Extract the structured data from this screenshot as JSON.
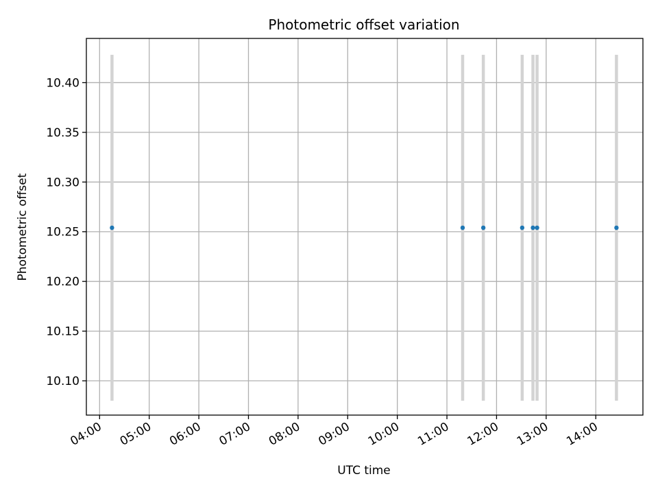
{
  "chart_data": {
    "type": "scatter",
    "title": "Photometric offset variation",
    "xlabel": "UTC time",
    "ylabel": "Photometric offset",
    "xlim": [
      "03:44",
      "14:57"
    ],
    "ylim": [
      10.0655,
      10.4445
    ],
    "grid": true,
    "x_ticks": [
      "04:00",
      "05:00",
      "06:00",
      "07:00",
      "08:00",
      "09:00",
      "10:00",
      "11:00",
      "12:00",
      "13:00",
      "14:00"
    ],
    "y_ticks": [
      "10.10",
      "10.15",
      "10.20",
      "10.25",
      "10.30",
      "10.35",
      "10.40"
    ],
    "points": [
      {
        "x": "04:15",
        "y": 10.254,
        "yerr_low": 10.08,
        "yerr_high": 10.428
      },
      {
        "x": "11:19",
        "y": 10.254,
        "yerr_low": 10.08,
        "yerr_high": 10.428
      },
      {
        "x": "11:44",
        "y": 10.254,
        "yerr_low": 10.08,
        "yerr_high": 10.428
      },
      {
        "x": "12:31",
        "y": 10.254,
        "yerr_low": 10.08,
        "yerr_high": 10.428
      },
      {
        "x": "12:44",
        "y": 10.254,
        "yerr_low": 10.08,
        "yerr_high": 10.428
      },
      {
        "x": "12:49",
        "y": 10.254,
        "yerr_low": 10.08,
        "yerr_high": 10.428
      },
      {
        "x": "14:25",
        "y": 10.254,
        "yerr_low": 10.08,
        "yerr_high": 10.428
      }
    ],
    "colors": {
      "point": "#1f77b4",
      "errorbar": "#d3d3d3",
      "grid": "#b0b0b0"
    }
  }
}
